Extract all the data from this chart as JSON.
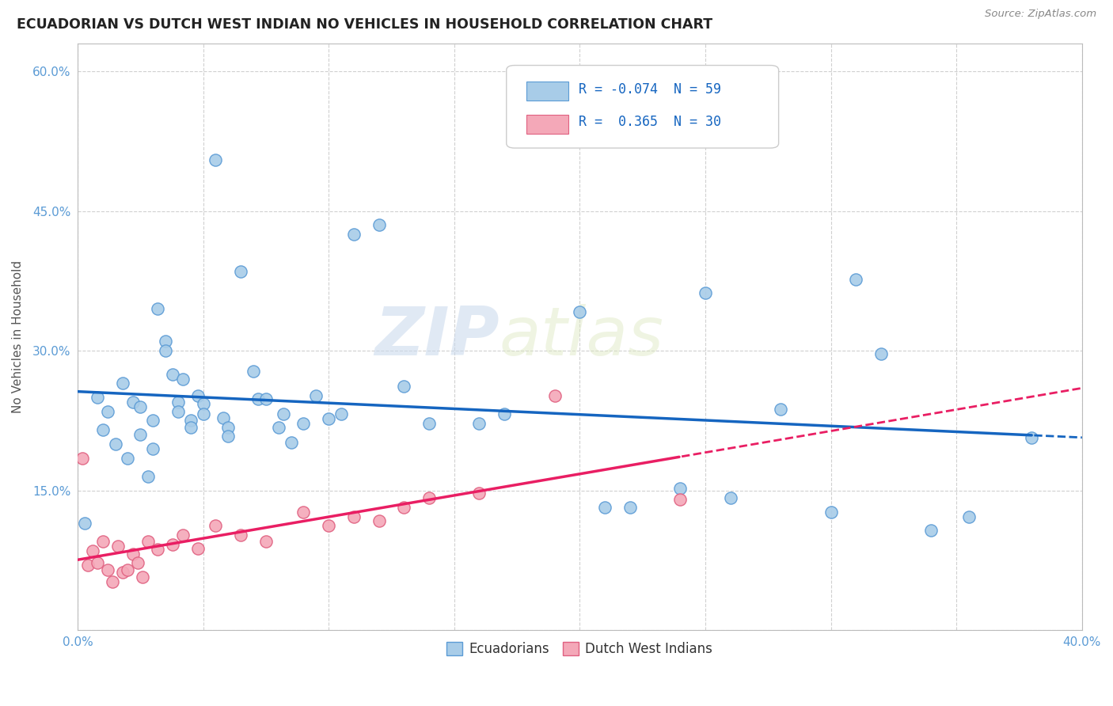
{
  "title": "ECUADORIAN VS DUTCH WEST INDIAN NO VEHICLES IN HOUSEHOLD CORRELATION CHART",
  "source": "Source: ZipAtlas.com",
  "ylabel": "No Vehicles in Household",
  "xlim": [
    0.0,
    0.4
  ],
  "ylim": [
    0.0,
    0.63
  ],
  "x_ticks": [
    0.0,
    0.05,
    0.1,
    0.15,
    0.2,
    0.25,
    0.3,
    0.35,
    0.4
  ],
  "y_ticks": [
    0.0,
    0.15,
    0.3,
    0.45,
    0.6
  ],
  "y_tick_labels": [
    "",
    "15.0%",
    "30.0%",
    "45.0%",
    "60.0%"
  ],
  "r_blue": -0.074,
  "n_blue": 59,
  "r_pink": 0.365,
  "n_pink": 30,
  "blue_color": "#a8cce8",
  "pink_color": "#f4a8b8",
  "blue_line_color": "#1565C0",
  "pink_line_color": "#E91E63",
  "watermark_zip": "ZIP",
  "watermark_atlas": "atlas",
  "blue_scatter_x": [
    0.003,
    0.008,
    0.01,
    0.012,
    0.015,
    0.018,
    0.02,
    0.022,
    0.025,
    0.025,
    0.028,
    0.03,
    0.03,
    0.032,
    0.035,
    0.035,
    0.038,
    0.04,
    0.04,
    0.042,
    0.045,
    0.045,
    0.048,
    0.05,
    0.05,
    0.055,
    0.058,
    0.06,
    0.06,
    0.065,
    0.07,
    0.072,
    0.075,
    0.08,
    0.082,
    0.085,
    0.09,
    0.095,
    0.1,
    0.105,
    0.11,
    0.12,
    0.13,
    0.14,
    0.16,
    0.17,
    0.2,
    0.21,
    0.22,
    0.24,
    0.25,
    0.26,
    0.28,
    0.3,
    0.31,
    0.32,
    0.34,
    0.355,
    0.38
  ],
  "blue_scatter_y": [
    0.115,
    0.25,
    0.215,
    0.235,
    0.2,
    0.265,
    0.185,
    0.245,
    0.24,
    0.21,
    0.165,
    0.225,
    0.195,
    0.345,
    0.31,
    0.3,
    0.275,
    0.245,
    0.235,
    0.27,
    0.225,
    0.218,
    0.252,
    0.243,
    0.232,
    0.505,
    0.228,
    0.218,
    0.208,
    0.385,
    0.278,
    0.248,
    0.248,
    0.218,
    0.232,
    0.202,
    0.222,
    0.252,
    0.227,
    0.232,
    0.425,
    0.435,
    0.262,
    0.222,
    0.222,
    0.232,
    0.342,
    0.132,
    0.132,
    0.152,
    0.362,
    0.142,
    0.237,
    0.127,
    0.377,
    0.297,
    0.107,
    0.122,
    0.207
  ],
  "pink_scatter_x": [
    0.002,
    0.004,
    0.006,
    0.008,
    0.01,
    0.012,
    0.014,
    0.016,
    0.018,
    0.02,
    0.022,
    0.024,
    0.026,
    0.028,
    0.032,
    0.038,
    0.042,
    0.048,
    0.055,
    0.065,
    0.075,
    0.09,
    0.1,
    0.11,
    0.12,
    0.13,
    0.14,
    0.16,
    0.19,
    0.24
  ],
  "pink_scatter_y": [
    0.185,
    0.07,
    0.085,
    0.072,
    0.095,
    0.065,
    0.052,
    0.09,
    0.062,
    0.065,
    0.082,
    0.072,
    0.057,
    0.095,
    0.087,
    0.092,
    0.102,
    0.088,
    0.112,
    0.102,
    0.095,
    0.127,
    0.112,
    0.122,
    0.117,
    0.132,
    0.142,
    0.147,
    0.252,
    0.14
  ]
}
